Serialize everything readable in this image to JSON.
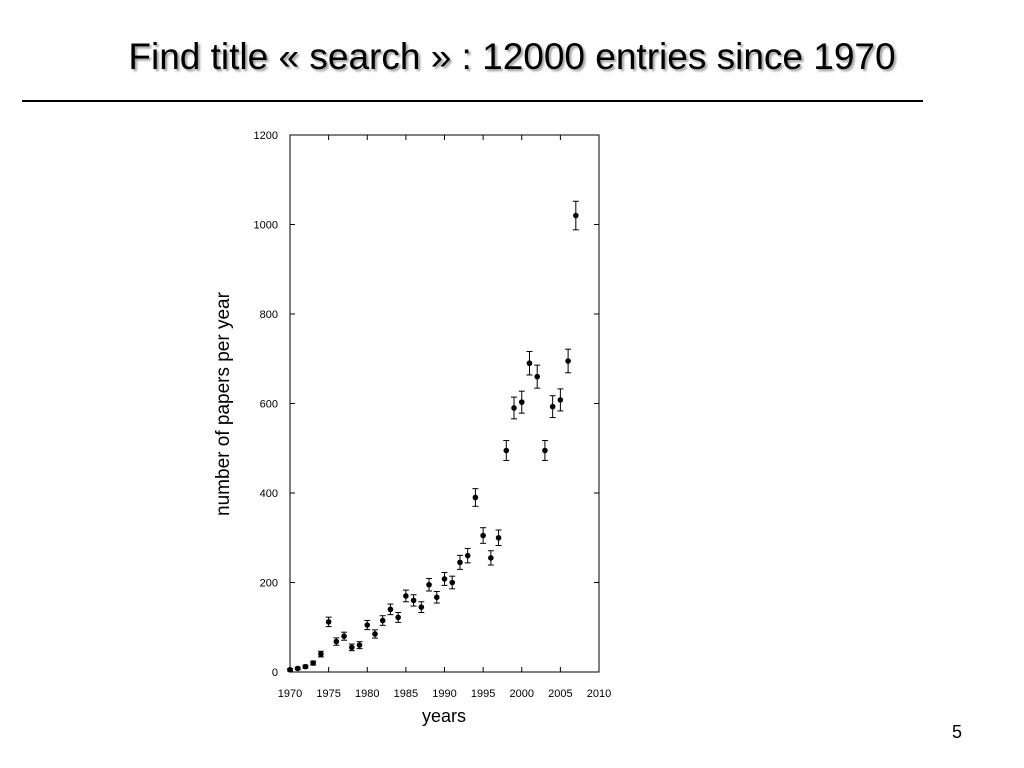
{
  "slide": {
    "title": "Find title « search » : 12000 entries since 1970",
    "page_number": "5"
  },
  "chart_data": {
    "type": "scatter",
    "title": "",
    "xlabel": "years",
    "ylabel": "number of papers per year",
    "xlim": [
      1970,
      2010
    ],
    "ylim": [
      0,
      1200
    ],
    "x_ticks": [
      1970,
      1975,
      1980,
      1985,
      1990,
      1995,
      2000,
      2005,
      2010
    ],
    "y_ticks": [
      0,
      200,
      400,
      600,
      800,
      1000,
      1200
    ],
    "x_tick_labels": [
      "1970",
      "1975",
      "1980",
      "1985",
      "1990",
      "1995",
      "2000",
      "2005",
      "2010"
    ],
    "y_tick_labels": [
      "0",
      "200",
      "400",
      "600",
      "800",
      "1000",
      "1200"
    ],
    "grid": false,
    "error_bars": true,
    "marker_color": "#000000",
    "x": [
      1970,
      1971,
      1972,
      1973,
      1974,
      1975,
      1976,
      1977,
      1978,
      1979,
      1980,
      1981,
      1982,
      1983,
      1984,
      1985,
      1986,
      1987,
      1988,
      1989,
      1990,
      1991,
      1992,
      1993,
      1994,
      1995,
      1996,
      1997,
      1998,
      1999,
      2000,
      2001,
      2002,
      2003,
      2004,
      2005,
      2006,
      2007
    ],
    "y": [
      5,
      8,
      12,
      20,
      40,
      112,
      68,
      80,
      55,
      60,
      105,
      85,
      115,
      140,
      122,
      170,
      160,
      145,
      195,
      167,
      208,
      200,
      245,
      260,
      390,
      305,
      255,
      300,
      495,
      590,
      603,
      690,
      660,
      495,
      593,
      608,
      695,
      1020
    ]
  }
}
